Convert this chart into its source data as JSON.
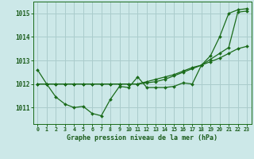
{
  "xlabel": "Graphe pression niveau de la mer (hPa)",
  "hours": [
    0,
    1,
    2,
    3,
    4,
    5,
    6,
    7,
    8,
    9,
    10,
    11,
    12,
    13,
    14,
    15,
    16,
    17,
    18,
    19,
    20,
    21,
    22,
    23
  ],
  "line1": [
    1012.6,
    1012.0,
    1011.45,
    1011.15,
    1011.0,
    1011.05,
    1010.75,
    1010.65,
    1011.35,
    1011.9,
    1011.85,
    1012.3,
    1011.85,
    1011.85,
    1011.85,
    1011.9,
    1012.05,
    1012.0,
    1012.8,
    1013.2,
    1014.0,
    1015.0,
    1015.15,
    1015.2
  ],
  "line2": [
    1012.0,
    1012.0,
    1012.0,
    1012.0,
    1012.0,
    1012.0,
    1012.0,
    1012.0,
    1012.0,
    1012.0,
    1012.0,
    1012.0,
    1012.1,
    1012.2,
    1012.3,
    1012.4,
    1012.55,
    1012.7,
    1012.8,
    1013.05,
    1013.3,
    1013.55,
    1015.05,
    1015.1
  ],
  "line3": [
    1012.0,
    1012.0,
    1012.0,
    1012.0,
    1012.0,
    1012.0,
    1012.0,
    1012.0,
    1012.0,
    1012.0,
    1012.0,
    1012.0,
    1012.05,
    1012.1,
    1012.2,
    1012.35,
    1012.5,
    1012.65,
    1012.8,
    1012.95,
    1013.1,
    1013.3,
    1013.5,
    1013.6
  ],
  "line_color": "#1a6b1a",
  "bg_color": "#cce8e8",
  "grid_color": "#aacccc",
  "axis_label_color": "#1a5c1a",
  "xlim": [
    -0.5,
    23.5
  ],
  "ylim_min": 1010.3,
  "ylim_max": 1015.5,
  "yticks": [
    1011,
    1012,
    1013,
    1014,
    1015
  ]
}
